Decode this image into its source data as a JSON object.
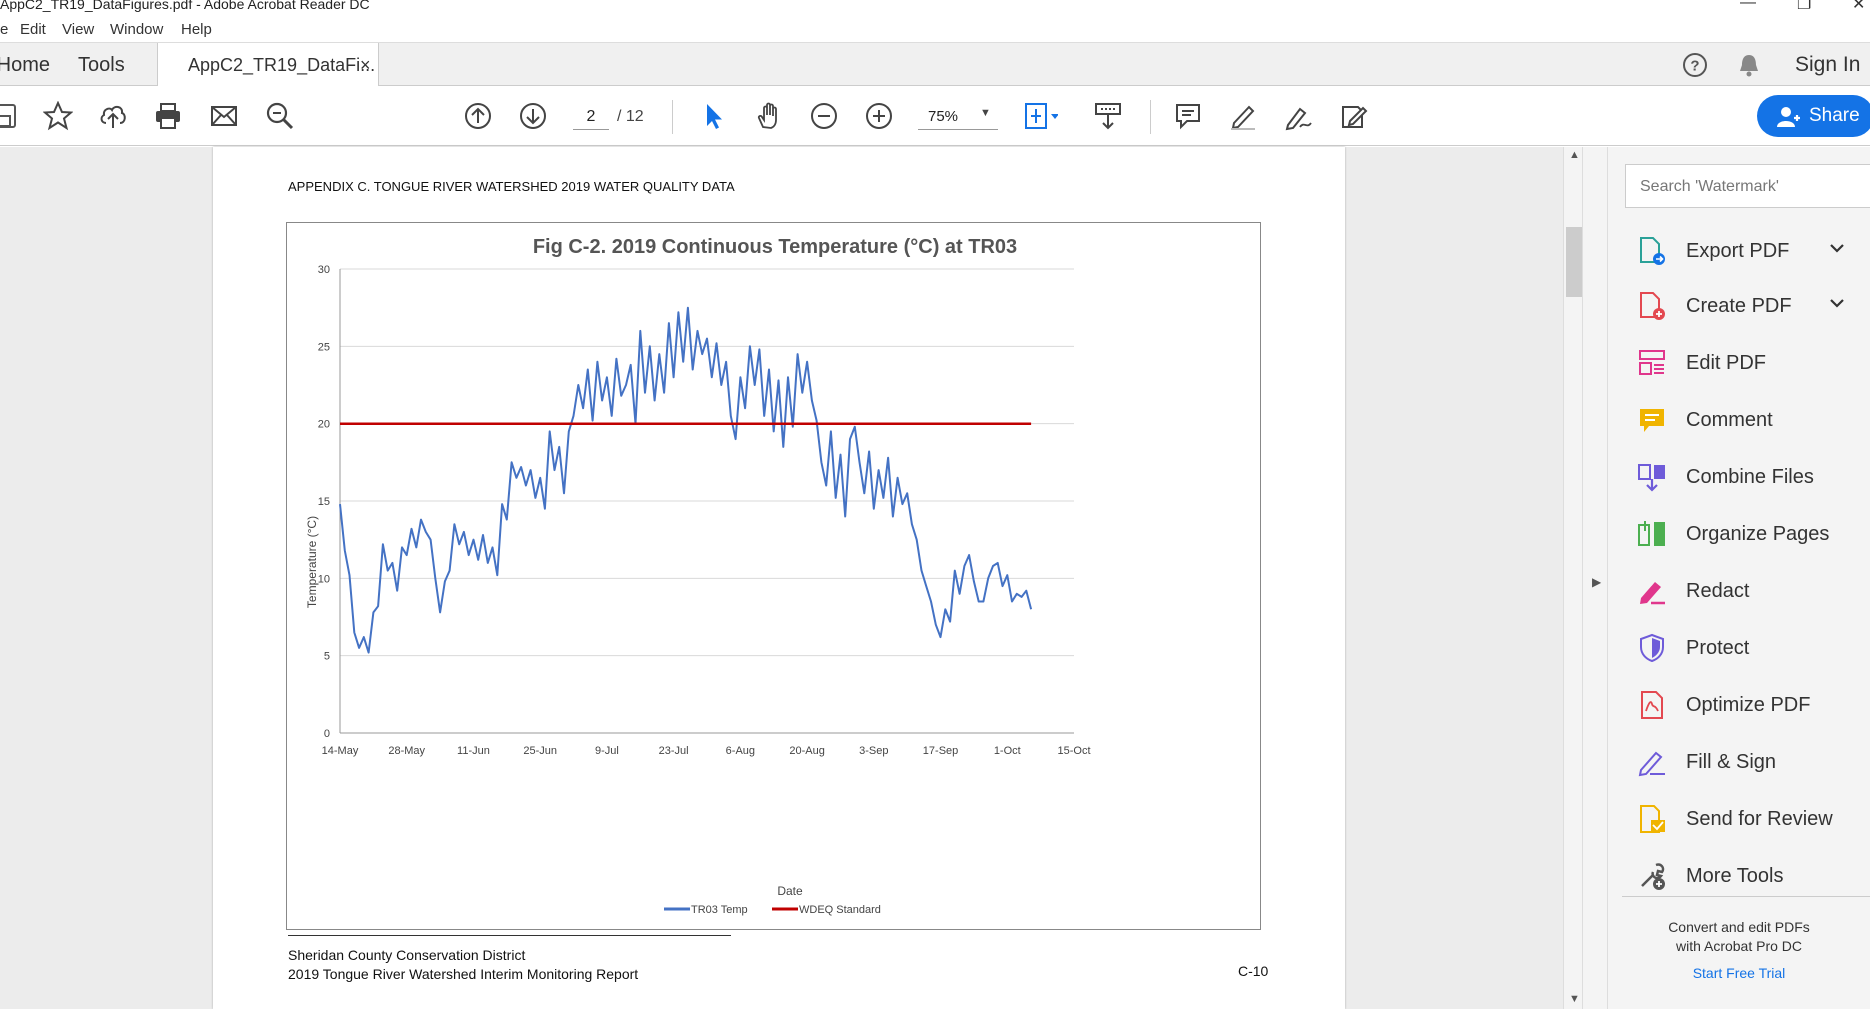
{
  "window": {
    "title": "AppC2_TR19_DataFigures.pdf - Adobe Acrobat Reader DC"
  },
  "menu": [
    "e",
    "Edit",
    "View",
    "Window",
    "Help"
  ],
  "tabs": {
    "home": "Home",
    "tools": "Tools",
    "doc": "AppC2_TR19_DataFi...",
    "close": "×"
  },
  "header_right": {
    "sign_in": "Sign In"
  },
  "toolbar": {
    "page_current": "2",
    "page_total": "/ 12",
    "zoom": "75%",
    "share": "Share"
  },
  "document": {
    "header": "APPENDIX C.  TONGUE RIVER WATERSHED 2019 WATER QUALITY DATA",
    "footer_line1": "Sheridan County Conservation District",
    "footer_line2": "2019 Tongue River Watershed Interim Monitoring Report",
    "page_label": "C-10"
  },
  "chart_data": {
    "type": "line",
    "title": "Fig C-2. 2019 Continuous Temperature (°C) at TR03",
    "xlabel": "Date",
    "ylabel": "Temperature (°C)",
    "ylim": [
      0,
      30
    ],
    "yticks": [
      "0",
      "5",
      "10",
      "15",
      "20",
      "25",
      "30"
    ],
    "xticks": [
      "14-May",
      "28-May",
      "11-Jun",
      "25-Jun",
      "9-Jul",
      "23-Jul",
      "6-Aug",
      "20-Aug",
      "3-Sep",
      "17-Sep",
      "1-Oct",
      "15-Oct"
    ],
    "legend_position": "bottom",
    "colors": {
      "temp": "#4472c4",
      "standard": "#c00000"
    },
    "series": [
      {
        "name": "TR03 Temp",
        "x": [
          0,
          1,
          2,
          3,
          4,
          5,
          6,
          7,
          8,
          9,
          10,
          11,
          12,
          13,
          14,
          15,
          16,
          17,
          18,
          19,
          20,
          21,
          22,
          23,
          24,
          25,
          26,
          27,
          28,
          29,
          30,
          31,
          32,
          33,
          34,
          35,
          36,
          37,
          38,
          39,
          40,
          41,
          42,
          43,
          44,
          45,
          46,
          47,
          48,
          49,
          50,
          51,
          52,
          53,
          54,
          55,
          56,
          57,
          58,
          59,
          60,
          61,
          62,
          63,
          64,
          65,
          66,
          67,
          68,
          69,
          70,
          71,
          72,
          73,
          74,
          75,
          76,
          77,
          78,
          79,
          80,
          81,
          82,
          83,
          84,
          85,
          86,
          87,
          88,
          89,
          90,
          91,
          92,
          93,
          94,
          95,
          96,
          97,
          98,
          99,
          100,
          101,
          102,
          103,
          104,
          105,
          106,
          107,
          108,
          109,
          110,
          111,
          112,
          113,
          114,
          115,
          116,
          117,
          118,
          119,
          120,
          121,
          122,
          123,
          124,
          125,
          126,
          127,
          128,
          129,
          130,
          131,
          132,
          133,
          134,
          135,
          136,
          137,
          138,
          139,
          140,
          141,
          142,
          143,
          144,
          145
        ],
        "values": [
          14.8,
          11.8,
          10.2,
          6.5,
          5.5,
          6.2,
          5.2,
          7.8,
          8.2,
          12.2,
          10.5,
          11.0,
          9.2,
          12.0,
          11.5,
          13.2,
          12.0,
          13.8,
          13.0,
          12.5,
          10.0,
          7.8,
          9.8,
          10.5,
          13.5,
          12.2,
          13.0,
          11.5,
          12.5,
          11.2,
          12.8,
          11.0,
          12.0,
          10.2,
          14.8,
          13.8,
          17.5,
          16.5,
          17.2,
          16.0,
          17.0,
          15.2,
          16.5,
          14.5,
          19.5,
          17.0,
          18.5,
          15.5,
          19.5,
          20.5,
          22.5,
          21.0,
          23.5,
          20.2,
          24.0,
          21.5,
          23.0,
          20.5,
          24.2,
          21.8,
          22.5,
          23.8,
          20.0,
          26.0,
          22.0,
          25.0,
          21.5,
          24.5,
          22.0,
          26.5,
          23.0,
          27.2,
          24.0,
          27.5,
          23.5,
          26.0,
          24.5,
          25.5,
          23.0,
          25.2,
          22.5,
          24.0,
          20.5,
          19.0,
          23.0,
          21.0,
          25.0,
          22.5,
          24.8,
          20.5,
          23.5,
          19.5,
          22.8,
          18.5,
          23.0,
          19.8,
          24.5,
          22.0,
          24.0,
          21.5,
          20.2,
          17.5,
          16.0,
          19.5,
          15.2,
          18.0,
          14.0,
          19.0,
          19.8,
          17.5,
          15.5,
          18.2,
          14.5,
          17.0,
          15.2,
          17.8,
          14.0,
          16.5,
          14.8,
          15.5,
          13.5,
          12.5,
          10.5,
          9.5,
          8.5,
          7.0,
          6.2,
          8.0,
          7.2,
          10.5,
          9.0,
          10.8,
          11.5,
          9.8,
          8.5,
          8.5,
          10.0,
          10.8,
          11.0,
          9.5,
          10.2,
          8.5,
          9.0,
          8.8,
          9.2,
          8.0
        ]
      },
      {
        "name": "WDEQ Standard",
        "x": [
          0,
          145
        ],
        "values": [
          20,
          20
        ]
      }
    ]
  },
  "search": {
    "placeholder": "Search 'Watermark'"
  },
  "tools_pane": {
    "items": [
      "Export PDF",
      "Create PDF",
      "Edit PDF",
      "Comment",
      "Combine Files",
      "Organize Pages",
      "Redact",
      "Protect",
      "Optimize PDF",
      "Fill & Sign",
      "Send for Review",
      "More Tools"
    ],
    "promo_line1": "Convert and edit PDFs",
    "promo_line2": "with Acrobat Pro DC",
    "promo_link": "Start Free Trial"
  },
  "icons": {
    "toolbar": [
      "save-icon",
      "star-icon",
      "upload-icon",
      "print-icon",
      "mail-icon",
      "search-icon",
      "page-up-icon",
      "page-down-icon",
      "select-cursor-icon",
      "hand-icon",
      "zoom-out-icon",
      "zoom-in-icon",
      "fit-page-icon",
      "scroll-mode-icon",
      "comment-icon",
      "highlight-icon",
      "sign-icon",
      "fill-sign-icon"
    ],
    "tools": [
      "export-pdf-icon",
      "create-pdf-icon",
      "edit-pdf-icon",
      "comment-icon",
      "combine-files-icon",
      "organize-pages-icon",
      "redact-icon",
      "protect-icon",
      "optimize-pdf-icon",
      "fill-sign-icon",
      "send-review-icon",
      "more-tools-icon"
    ]
  }
}
